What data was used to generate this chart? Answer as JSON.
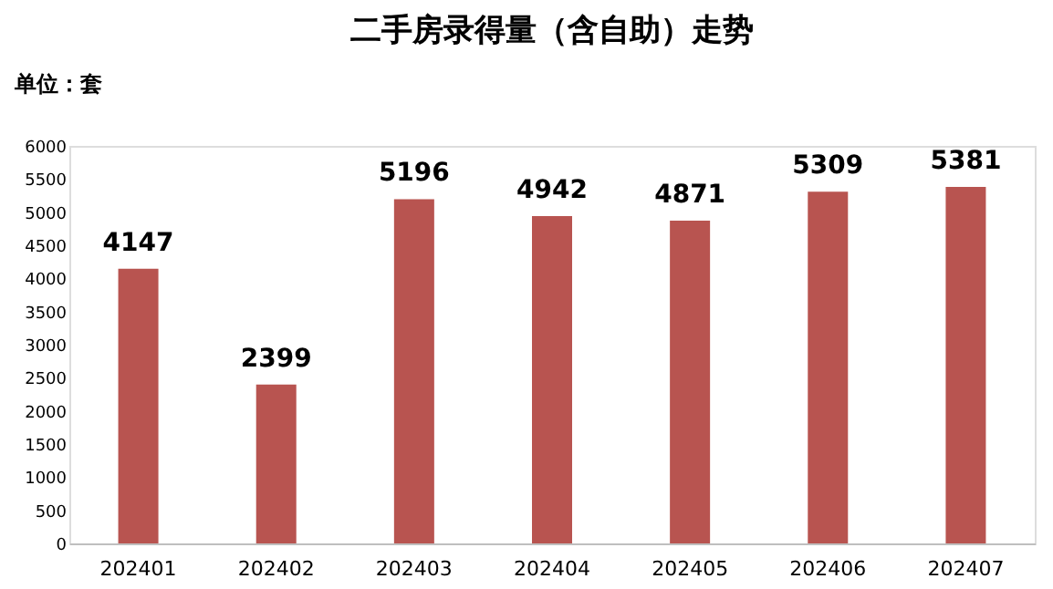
{
  "chart_data": {
    "type": "bar",
    "title": "二手房录得量（含自助）走势",
    "annotations": [
      "单位：套"
    ],
    "categories": [
      "202401",
      "202402",
      "202403",
      "202404",
      "202405",
      "202406",
      "202407"
    ],
    "series": [
      {
        "color": "#b85450",
        "values": [
          4147,
          2399,
          5196,
          4942,
          4871,
          5309,
          5381
        ]
      }
    ],
    "ylim": [
      0,
      6000
    ],
    "yticks": [
      0,
      500,
      1000,
      1500,
      2000,
      2500,
      3000,
      3500,
      4000,
      4500,
      5000,
      5500,
      6000
    ],
    "grid": false,
    "legend": false,
    "data_labels": true
  }
}
